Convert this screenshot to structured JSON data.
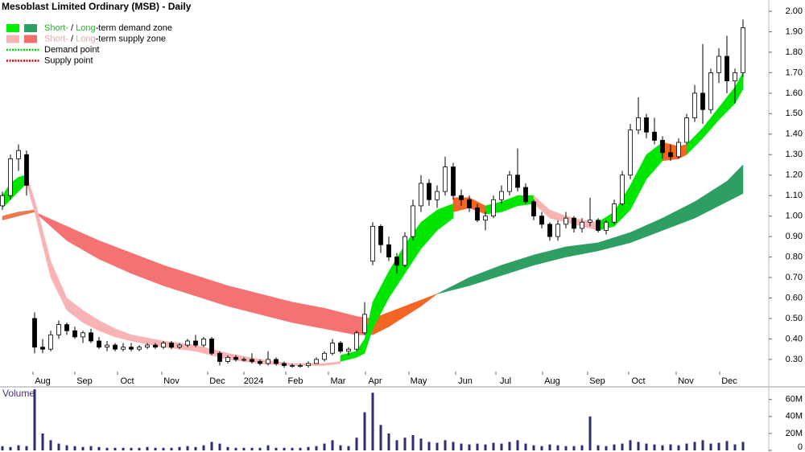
{
  "chart_data": {
    "type": "candlestick",
    "title": "Mesoblast Limited Ordinary (MSB) - Daily",
    "legend": [
      {
        "swatches": [
          "#00f000",
          "#2e9e62"
        ],
        "line": null,
        "parts": [
          {
            "text": "Short-",
            "color": "#00d000"
          },
          {
            "text": " / ",
            "color": "#000000"
          },
          {
            "text": "Long",
            "color": "#00d000"
          },
          {
            "text": "-term demand zone",
            "color": "#000000"
          }
        ]
      },
      {
        "swatches": [
          "#f8b4b4",
          "#f26d6d"
        ],
        "line": null,
        "parts": [
          {
            "text": "Short-",
            "color": "#f4a0a0"
          },
          {
            "text": " / ",
            "color": "#000000"
          },
          {
            "text": "Long",
            "color": "#f4a0a0"
          },
          {
            "text": "-term supply zone",
            "color": "#000000"
          }
        ]
      },
      {
        "swatches": [],
        "line": "#00d000",
        "parts": [
          {
            "text": "Demand point",
            "color": "#000000"
          }
        ]
      },
      {
        "swatches": [],
        "line": "#e00000",
        "parts": [
          {
            "text": "Supply point",
            "color": "#000000"
          }
        ]
      }
    ],
    "xlim": [
      -0.3,
      95.2
    ],
    "xticks": [
      {
        "value": 5,
        "label": "Aug"
      },
      {
        "value": 10.2,
        "label": "Sep"
      },
      {
        "value": 15.5,
        "label": "Oct"
      },
      {
        "value": 21,
        "label": "Nov"
      },
      {
        "value": 26.7,
        "label": "Dec"
      },
      {
        "value": 31.2,
        "label": "2024"
      },
      {
        "value": 36.4,
        "label": "Feb"
      },
      {
        "value": 41.7,
        "label": "Mar"
      },
      {
        "value": 46.3,
        "label": "Apr"
      },
      {
        "value": 51.7,
        "label": "May"
      },
      {
        "value": 57.5,
        "label": "Jun"
      },
      {
        "value": 62.5,
        "label": "Jul"
      },
      {
        "value": 68.3,
        "label": "Aug"
      },
      {
        "value": 73.9,
        "label": "Sep"
      },
      {
        "value": 79,
        "label": "Oct"
      },
      {
        "value": 84.9,
        "label": "Nov"
      },
      {
        "value": 90.3,
        "label": "Dec"
      }
    ],
    "ylim": [
      0.17,
      2.055
    ],
    "yticks": [
      {
        "value": 0.3,
        "label": "0.30"
      },
      {
        "value": 0.4,
        "label": "0.40"
      },
      {
        "value": 0.5,
        "label": "0.50"
      },
      {
        "value": 0.6,
        "label": "0.60"
      },
      {
        "value": 0.7,
        "label": "0.70"
      },
      {
        "value": 0.8,
        "label": "0.80"
      },
      {
        "value": 0.9,
        "label": "0.90"
      },
      {
        "value": 1.0,
        "label": "1.00"
      },
      {
        "value": 1.1,
        "label": "1.10"
      },
      {
        "value": 1.2,
        "label": "1.20"
      },
      {
        "value": 1.3,
        "label": "1.30"
      },
      {
        "value": 1.4,
        "label": "1.40"
      },
      {
        "value": 1.5,
        "label": "1.50"
      },
      {
        "value": 1.6,
        "label": "1.60"
      },
      {
        "value": 1.7,
        "label": "1.70"
      },
      {
        "value": 1.8,
        "label": "1.80"
      },
      {
        "value": 1.9,
        "label": "1.90"
      },
      {
        "value": 2.0,
        "label": "2.00"
      }
    ],
    "zones": [
      {
        "color": "#ea7a50",
        "x": [
          0,
          2,
          4
        ],
        "upper": [
          1.0,
          1.02,
          1.03
        ],
        "lower": [
          0.98,
          1.0,
          1.02
        ]
      },
      {
        "color": "#f47272",
        "x": [
          4,
          8,
          12,
          16,
          20,
          24,
          28,
          32,
          36,
          40,
          44,
          46
        ],
        "upper": [
          1.02,
          0.95,
          0.88,
          0.82,
          0.76,
          0.71,
          0.66,
          0.62,
          0.58,
          0.55,
          0.51,
          0.5
        ],
        "lower": [
          1.02,
          0.88,
          0.79,
          0.72,
          0.66,
          0.61,
          0.56,
          0.52,
          0.48,
          0.45,
          0.42,
          0.42
        ]
      },
      {
        "color": "#f26522",
        "x": [
          46,
          48,
          50,
          52,
          54
        ],
        "upper": [
          0.5,
          0.53,
          0.56,
          0.59,
          0.62
        ],
        "lower": [
          0.42,
          0.46,
          0.51,
          0.56,
          0.62
        ]
      },
      {
        "color": "#2e9e62",
        "x": [
          54,
          58,
          62,
          66,
          70,
          74,
          78,
          82,
          86,
          90,
          92
        ],
        "upper": [
          0.62,
          0.7,
          0.76,
          0.81,
          0.85,
          0.87,
          0.92,
          0.99,
          1.07,
          1.17,
          1.25
        ],
        "lower": [
          0.62,
          0.66,
          0.71,
          0.76,
          0.8,
          0.83,
          0.87,
          0.93,
          0.99,
          1.07,
          1.11
        ]
      },
      {
        "color": "#00e600",
        "x": [
          0,
          1,
          2,
          3
        ],
        "upper": [
          1.1,
          1.16,
          1.19,
          1.2
        ],
        "lower": [
          1.04,
          1.08,
          1.12,
          1.16
        ]
      },
      {
        "color": "#f8b4b4",
        "x": [
          3,
          4,
          6,
          8,
          10,
          12,
          14,
          16,
          20,
          24,
          28,
          32,
          36,
          40,
          42
        ],
        "upper": [
          1.2,
          1.08,
          0.78,
          0.6,
          0.54,
          0.49,
          0.45,
          0.42,
          0.39,
          0.37,
          0.33,
          0.3,
          0.28,
          0.28,
          0.29
        ],
        "lower": [
          1.16,
          1.02,
          0.7,
          0.54,
          0.48,
          0.44,
          0.41,
          0.39,
          0.36,
          0.34,
          0.3,
          0.28,
          0.27,
          0.27,
          0.28
        ]
      },
      {
        "color": "#00e600",
        "x": [
          42,
          44,
          45,
          46,
          48,
          50,
          52,
          54,
          56
        ],
        "upper": [
          0.32,
          0.34,
          0.4,
          0.58,
          0.73,
          0.86,
          0.97,
          1.03,
          1.06
        ],
        "lower": [
          0.29,
          0.31,
          0.33,
          0.45,
          0.6,
          0.72,
          0.84,
          0.93,
          0.99
        ]
      },
      {
        "color": "#f26522",
        "x": [
          56,
          58,
          60
        ],
        "upper": [
          1.09,
          1.09,
          1.05
        ],
        "lower": [
          1.02,
          1.04,
          1.01
        ]
      },
      {
        "color": "#00e600",
        "x": [
          60,
          62,
          64,
          66
        ],
        "upper": [
          1.05,
          1.07,
          1.1,
          1.1
        ],
        "lower": [
          1.01,
          1.02,
          1.05,
          1.06
        ]
      },
      {
        "color": "#f8b4b4",
        "x": [
          66,
          68,
          70,
          72,
          74
        ],
        "upper": [
          1.1,
          1.03,
          1.0,
          0.98,
          0.97
        ],
        "lower": [
          1.06,
          0.99,
          0.97,
          0.95,
          0.93
        ]
      },
      {
        "color": "#00e600",
        "x": [
          74,
          76,
          78,
          80,
          82
        ],
        "upper": [
          0.97,
          1.02,
          1.15,
          1.3,
          1.36
        ],
        "lower": [
          0.93,
          0.95,
          1.03,
          1.18,
          1.27
        ]
      },
      {
        "color": "#f26522",
        "x": [
          82,
          84,
          85
        ],
        "upper": [
          1.36,
          1.34,
          1.35
        ],
        "lower": [
          1.27,
          1.28,
          1.3
        ]
      },
      {
        "color": "#00e600",
        "x": [
          85,
          87,
          89,
          91,
          92
        ],
        "upper": [
          1.35,
          1.43,
          1.53,
          1.63,
          1.7
        ],
        "lower": [
          1.3,
          1.38,
          1.47,
          1.55,
          1.62
        ]
      }
    ],
    "open": [
      1.05,
      1.1,
      1.28,
      1.3,
      0.5,
      0.36,
      0.35,
      0.42,
      0.47,
      0.44,
      0.41,
      0.43,
      0.39,
      0.36,
      0.37,
      0.35,
      0.36,
      0.35,
      0.36,
      0.37,
      0.36,
      0.38,
      0.36,
      0.37,
      0.39,
      0.37,
      0.4,
      0.33,
      0.29,
      0.31,
      0.3,
      0.3,
      0.29,
      0.28,
      0.3,
      0.28,
      0.27,
      0.27,
      0.27,
      0.28,
      0.3,
      0.33,
      0.38,
      0.34,
      0.35,
      0.43,
      0.78,
      0.95,
      0.86,
      0.8,
      0.76,
      0.9,
      1.05,
      1.16,
      1.08,
      1.12,
      1.24,
      1.1,
      1.08,
      1.04,
      0.98,
      1.0,
      1.08,
      1.12,
      1.2,
      1.14,
      1.07,
      1.0,
      0.96,
      0.9,
      0.96,
      0.99,
      0.94,
      0.97,
      0.98,
      0.93,
      0.97,
      1.06,
      1.2,
      1.42,
      1.48,
      1.41,
      1.37,
      1.31,
      1.29,
      1.36,
      1.48,
      1.6,
      1.52,
      1.7,
      1.78,
      1.66,
      1.7
    ],
    "high": [
      1.12,
      1.3,
      1.35,
      1.32,
      0.53,
      0.4,
      0.44,
      0.49,
      0.48,
      0.46,
      0.44,
      0.45,
      0.41,
      0.39,
      0.38,
      0.38,
      0.38,
      0.37,
      0.38,
      0.38,
      0.39,
      0.39,
      0.38,
      0.4,
      0.42,
      0.41,
      0.41,
      0.34,
      0.32,
      0.32,
      0.31,
      0.33,
      0.3,
      0.34,
      0.31,
      0.29,
      0.28,
      0.28,
      0.29,
      0.31,
      0.34,
      0.4,
      0.39,
      0.36,
      0.44,
      0.58,
      0.97,
      0.96,
      0.9,
      0.82,
      0.92,
      1.08,
      1.2,
      1.18,
      1.15,
      1.29,
      1.26,
      1.13,
      1.1,
      1.06,
      1.02,
      1.1,
      1.15,
      1.22,
      1.33,
      1.16,
      1.08,
      1.02,
      0.97,
      0.98,
      1.02,
      1.0,
      0.99,
      1.09,
      0.99,
      0.98,
      1.08,
      1.22,
      1.45,
      1.58,
      1.5,
      1.48,
      1.39,
      1.35,
      1.38,
      1.5,
      1.64,
      1.84,
      1.72,
      1.82,
      1.88,
      1.72,
      1.96
    ],
    "low": [
      1.03,
      1.08,
      1.22,
      1.1,
      0.33,
      0.33,
      0.34,
      0.4,
      0.42,
      0.4,
      0.38,
      0.38,
      0.35,
      0.34,
      0.34,
      0.34,
      0.34,
      0.34,
      0.35,
      0.35,
      0.35,
      0.35,
      0.35,
      0.36,
      0.36,
      0.36,
      0.32,
      0.27,
      0.28,
      0.29,
      0.29,
      0.28,
      0.27,
      0.27,
      0.27,
      0.26,
      0.26,
      0.26,
      0.26,
      0.28,
      0.29,
      0.32,
      0.33,
      0.32,
      0.34,
      0.42,
      0.76,
      0.82,
      0.78,
      0.72,
      0.75,
      0.88,
      1.02,
      1.05,
      1.04,
      1.1,
      1.08,
      1.05,
      1.02,
      0.97,
      0.93,
      0.99,
      1.06,
      1.1,
      1.12,
      1.06,
      0.98,
      0.94,
      0.88,
      0.88,
      0.94,
      0.92,
      0.92,
      0.95,
      0.92,
      0.91,
      0.96,
      1.05,
      1.18,
      1.4,
      1.38,
      1.35,
      1.28,
      1.27,
      1.28,
      1.35,
      1.46,
      1.45,
      1.5,
      1.65,
      1.6,
      1.55,
      1.68
    ],
    "close": [
      1.1,
      1.28,
      1.32,
      1.15,
      0.36,
      0.35,
      0.42,
      0.47,
      0.44,
      0.41,
      0.43,
      0.39,
      0.36,
      0.37,
      0.35,
      0.36,
      0.35,
      0.36,
      0.37,
      0.36,
      0.38,
      0.36,
      0.37,
      0.39,
      0.37,
      0.4,
      0.33,
      0.29,
      0.31,
      0.3,
      0.3,
      0.29,
      0.28,
      0.3,
      0.28,
      0.27,
      0.27,
      0.27,
      0.28,
      0.3,
      0.33,
      0.38,
      0.34,
      0.35,
      0.43,
      0.52,
      0.95,
      0.86,
      0.8,
      0.76,
      0.9,
      1.05,
      1.16,
      1.08,
      1.12,
      1.24,
      1.1,
      1.08,
      1.04,
      0.98,
      1.0,
      1.08,
      1.12,
      1.2,
      1.14,
      1.07,
      1.0,
      0.96,
      0.9,
      0.96,
      0.99,
      0.94,
      0.97,
      0.98,
      0.93,
      0.97,
      1.06,
      1.2,
      1.42,
      1.48,
      1.41,
      1.37,
      1.31,
      1.29,
      1.36,
      1.48,
      1.6,
      1.52,
      1.7,
      1.78,
      1.66,
      1.7,
      1.92
    ],
    "volume_label": "Volume",
    "volume": [
      5,
      4,
      6,
      5,
      72,
      20,
      12,
      8,
      6,
      5,
      4,
      5,
      4,
      3,
      3,
      3,
      3,
      3,
      4,
      3,
      3,
      3,
      4,
      5,
      4,
      6,
      10,
      8,
      4,
      3,
      3,
      3,
      3,
      6,
      3,
      3,
      3,
      3,
      4,
      5,
      8,
      12,
      6,
      5,
      15,
      45,
      68,
      30,
      20,
      12,
      15,
      18,
      14,
      10,
      9,
      12,
      10,
      8,
      7,
      8,
      7,
      9,
      8,
      10,
      12,
      8,
      6,
      5,
      7,
      6,
      5,
      5,
      6,
      40,
      6,
      5,
      7,
      8,
      12,
      10,
      8,
      7,
      6,
      7,
      6,
      8,
      10,
      12,
      8,
      9,
      11,
      7,
      10
    ],
    "volume_color": "#2c2c7a",
    "vlim": [
      0,
      74
    ],
    "vticks": [
      0,
      {
        "value": 20,
        "label": "20M"
      },
      {
        "value": 40,
        "label": "40M"
      },
      {
        "value": 60,
        "label": "60M"
      }
    ]
  }
}
